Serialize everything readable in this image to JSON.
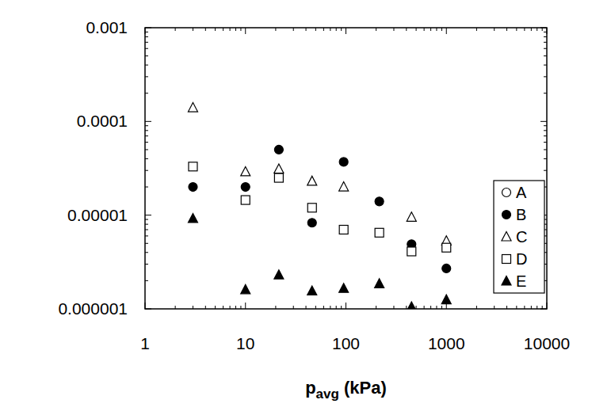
{
  "chart_data": {
    "type": "scatter",
    "x_label": "pavg (kPa)",
    "log": true,
    "grid": false,
    "legend": "right",
    "xlim": [
      1,
      10000
    ],
    "ylim": [
      1e-06,
      0.001
    ],
    "xticks": [
      1,
      10,
      100,
      1000,
      10000
    ],
    "yticks": [
      1e-06,
      1e-05,
      0.0001,
      0.001
    ],
    "series": [
      {
        "name": "A",
        "color": "#000000",
        "marker": "circle-open",
        "x": [],
        "values": []
      },
      {
        "name": "B",
        "color": "#000000",
        "marker": "circle",
        "x": [
          3,
          10,
          21.5,
          46,
          95,
          215,
          450,
          1000
        ],
        "values": [
          2e-05,
          2e-05,
          5e-05,
          8.3e-06,
          3.7e-05,
          1.4e-05,
          4.9e-06,
          2.7e-06
        ]
      },
      {
        "name": "C",
        "color": "#000000",
        "marker": "triangle-open",
        "x": [
          3,
          10,
          21.5,
          46,
          95,
          450,
          1000
        ],
        "values": [
          0.00014,
          2.9e-05,
          3.1e-05,
          2.3e-05,
          2e-05,
          9.5e-06,
          5.3e-06
        ]
      },
      {
        "name": "D",
        "color": "#000000",
        "marker": "square-open",
        "x": [
          3,
          10,
          21.5,
          46,
          95,
          215,
          450,
          1000
        ],
        "values": [
          3.3e-05,
          1.45e-05,
          2.5e-05,
          1.2e-05,
          7e-06,
          6.5e-06,
          4.1e-06,
          4.5e-06
        ]
      },
      {
        "name": "E",
        "color": "#000000",
        "marker": "triangle",
        "x": [
          3,
          10,
          21.5,
          46,
          95,
          215,
          450,
          1000
        ],
        "values": [
          9.2e-06,
          1.6e-06,
          2.3e-06,
          1.55e-06,
          1.65e-06,
          1.85e-06,
          1.05e-06,
          1.25e-06
        ]
      }
    ]
  }
}
